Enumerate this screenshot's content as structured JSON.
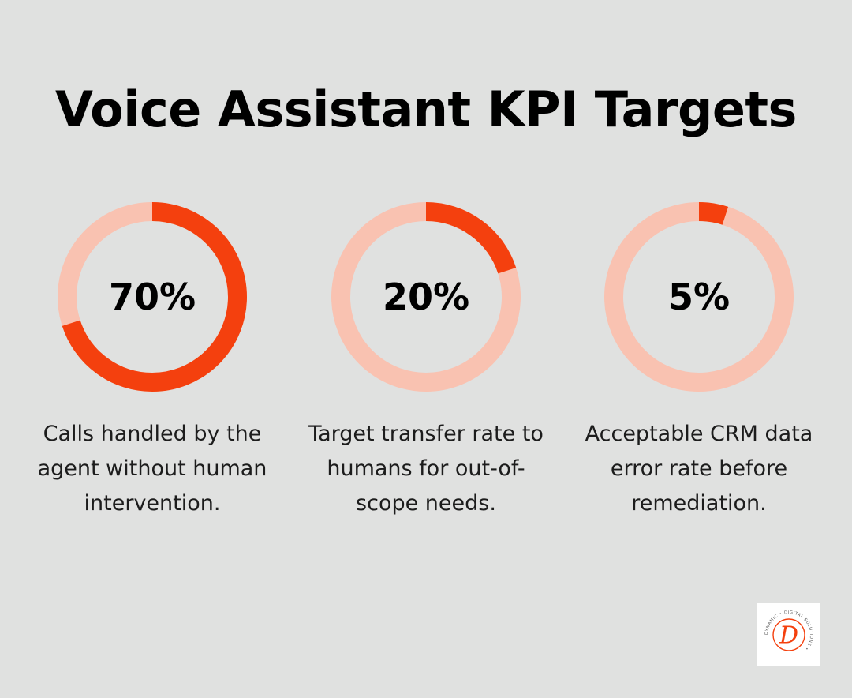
{
  "title": "Voice Assistant KPI Targets",
  "colors": {
    "background": "#e0e1e0",
    "accent": "#f4400e",
    "track": "#f9c2b1",
    "text": "#000000"
  },
  "chart_data": {
    "type": "pie",
    "style": "donut-progress",
    "items": [
      {
        "value": 70,
        "label": "70%",
        "caption": "Calls handled by the agent without human intervention."
      },
      {
        "value": 20,
        "label": "20%",
        "caption": "Target transfer rate to humans for out-of-scope needs."
      },
      {
        "value": 5,
        "label": "5%",
        "caption": "Acceptable CRM data error rate before remediation."
      }
    ]
  },
  "logo": {
    "initial": "D",
    "ring_text": "DYNAMIC • DIGITAL SOLUTIONS •"
  }
}
